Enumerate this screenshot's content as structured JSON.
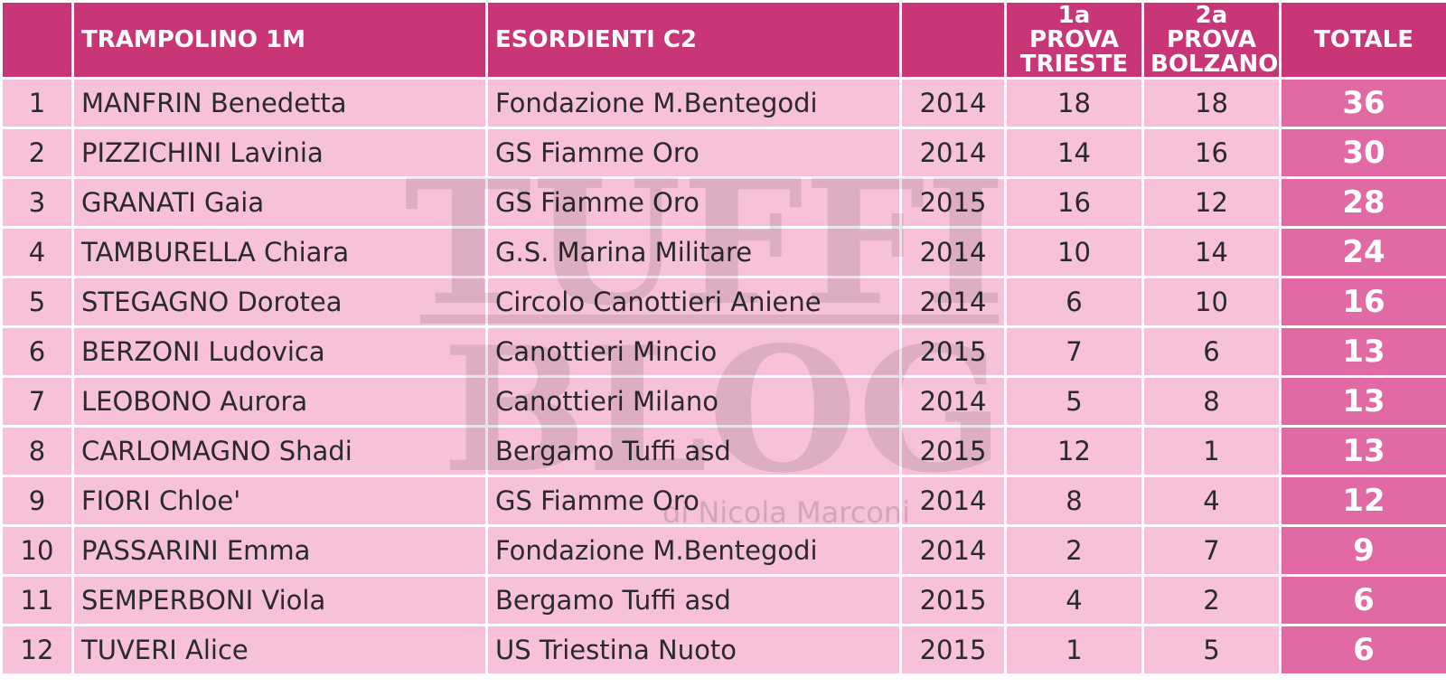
{
  "header": {
    "rank": "",
    "event": "TRAMPOLINO 1M",
    "category": "ESORDIENTI C2",
    "year": "",
    "prova1": "1a PROVA TRIESTE",
    "prova2": "2a PROVA BOLZANO",
    "total": "TOTALE"
  },
  "rows": [
    {
      "rank": "1",
      "name": "MANFRIN Benedetta",
      "club": "Fondazione M.Bentegodi",
      "year": "2014",
      "p1": "18",
      "p2": "18",
      "total": "36"
    },
    {
      "rank": "2",
      "name": "PIZZICHINI Lavinia",
      "club": "GS Fiamme Oro",
      "year": "2014",
      "p1": "14",
      "p2": "16",
      "total": "30"
    },
    {
      "rank": "3",
      "name": "GRANATI Gaia",
      "club": "GS Fiamme Oro",
      "year": "2015",
      "p1": "16",
      "p2": "12",
      "total": "28"
    },
    {
      "rank": "4",
      "name": "TAMBURELLA Chiara",
      "club": "G.S. Marina Militare",
      "year": "2014",
      "p1": "10",
      "p2": "14",
      "total": "24"
    },
    {
      "rank": "5",
      "name": "STEGAGNO Dorotea",
      "club": "Circolo Canottieri Aniene",
      "year": "2014",
      "p1": "6",
      "p2": "10",
      "total": "16"
    },
    {
      "rank": "6",
      "name": "BERZONI Ludovica",
      "club": "Canottieri Mincio",
      "year": "2015",
      "p1": "7",
      "p2": "6",
      "total": "13"
    },
    {
      "rank": "7",
      "name": "LEOBONO Aurora",
      "club": "Canottieri Milano",
      "year": "2014",
      "p1": "5",
      "p2": "8",
      "total": "13"
    },
    {
      "rank": "8",
      "name": "CARLOMAGNO Shadi",
      "club": "Bergamo Tuffi asd",
      "year": "2015",
      "p1": "12",
      "p2": "1",
      "total": "13"
    },
    {
      "rank": "9",
      "name": "FIORI Chloe'",
      "club": "GS Fiamme Oro",
      "year": "2014",
      "p1": "8",
      "p2": "4",
      "total": "12"
    },
    {
      "rank": "10",
      "name": "PASSARINI Emma",
      "club": "Fondazione M.Bentegodi",
      "year": "2014",
      "p1": "2",
      "p2": "7",
      "total": "9"
    },
    {
      "rank": "11",
      "name": "SEMPERBONI Viola",
      "club": "Bergamo Tuffi asd",
      "year": "2015",
      "p1": "4",
      "p2": "2",
      "total": "6"
    },
    {
      "rank": "12",
      "name": "TUVERI Alice",
      "club": "US Triestina Nuoto",
      "year": "2015",
      "p1": "1",
      "p2": "5",
      "total": "6"
    }
  ],
  "watermark": {
    "line1": "TUFFI",
    "line2": "BLOG",
    "byline": "di Nicola Marconi"
  },
  "colors": {
    "header_bg": "#c93677",
    "row_bg": "#f6c1d9",
    "total_bg": "#e26aa4"
  }
}
